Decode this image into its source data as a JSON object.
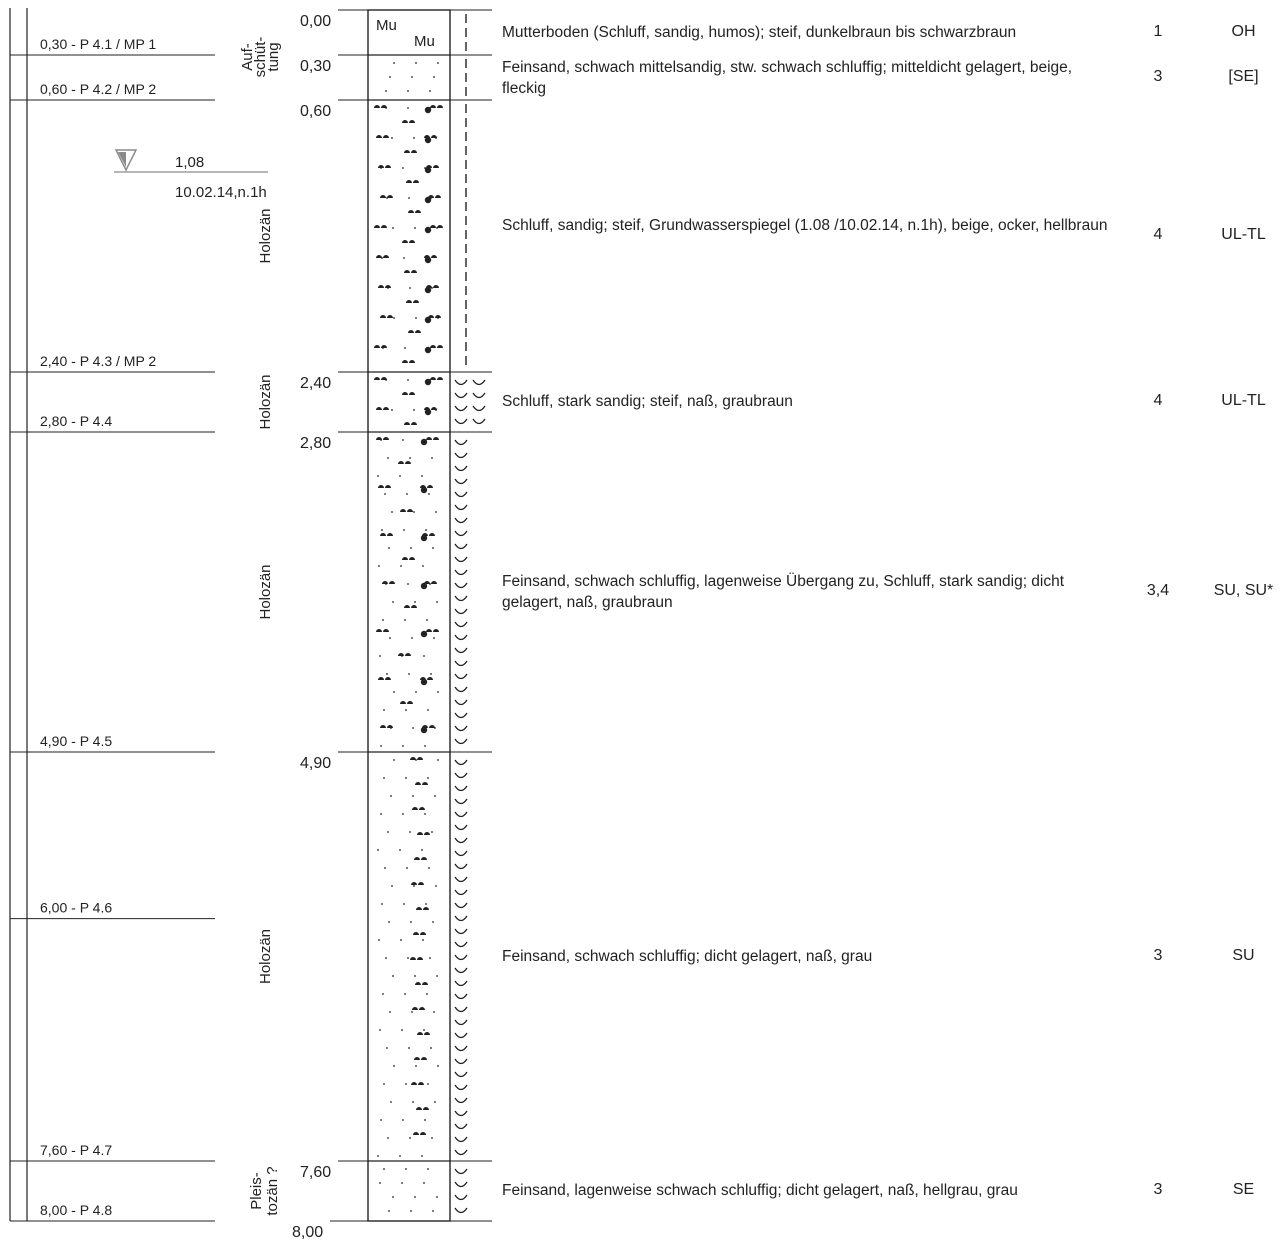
{
  "samples": [
    {
      "label": "0,30 - P 4.1 / MP 1",
      "depth": 0.3
    },
    {
      "label": "0,60 - P 4.2 / MP 2",
      "depth": 0.6
    },
    {
      "label": "2,40 - P 4.3 / MP 2",
      "depth": 2.4
    },
    {
      "label": "2,80 - P 4.4",
      "depth": 2.8
    },
    {
      "label": "4,90 - P 4.5",
      "depth": 4.9
    },
    {
      "label": "6,00 - P 4.6",
      "depth": 6.0
    },
    {
      "label": "7,60 - P 4.7",
      "depth": 7.6
    },
    {
      "label": "8,00 - P 4.8",
      "depth": 8.0
    }
  ],
  "groundwater": {
    "level": "1,08",
    "date": "10.02.14,n.1h",
    "depth": 1.08
  },
  "layers": [
    {
      "top": 0.0,
      "bottom": 0.3,
      "top_label": "0,00",
      "pattern": "topsoil",
      "symbol": "Mu",
      "consistency": "dashed",
      "geology": "",
      "description": "Mutterboden (Schluff, sandig, humos); steif, dunkelbraun bis schwarzbraun",
      "class": "1",
      "soil_group": "OH"
    },
    {
      "top": 0.3,
      "bottom": 0.6,
      "top_label": "0,30",
      "pattern": "sand",
      "consistency": "dashed",
      "geology": "",
      "description": "Feinsand, schwach mittelsandig, stw. schwach schluffig; mitteldicht gelagert, beige, fleckig",
      "class": "3",
      "soil_group": "[SE]"
    },
    {
      "top": 0.6,
      "bottom": 2.4,
      "top_label": "0,60",
      "pattern": "silt-sand",
      "consistency": "dashed",
      "geology": "Holozän",
      "description": "Schluff, sandig; steif, Grundwasserspiegel (1.08 /10.02.14, n.1h), beige, ocker, hellbraun",
      "class": "4",
      "soil_group": "UL-TL"
    },
    {
      "top": 2.4,
      "bottom": 2.8,
      "top_label": "2,40",
      "pattern": "silt-sand",
      "consistency": "wet",
      "geology": "Holozän",
      "description": "Schluff, stark sandig; steif, naß, graubraun",
      "class": "4",
      "soil_group": "UL-TL"
    },
    {
      "top": 2.8,
      "bottom": 4.9,
      "top_label": "2,80",
      "pattern": "sand-silt",
      "consistency": "wet",
      "geology": "Holozän",
      "description": "Feinsand, schwach schluffig, lagenweise Übergang zu, Schluff, stark sandig; dicht gelagert, naß, graubraun",
      "class": "3,4",
      "soil_group": "SU, SU*"
    },
    {
      "top": 4.9,
      "bottom": 7.6,
      "top_label": "4,90",
      "pattern": "sand-weak-silt",
      "consistency": "wet",
      "geology": "Holozän",
      "description": "Feinsand, schwach schluffig; dicht gelagert, naß, grau",
      "class": "3",
      "soil_group": "SU"
    },
    {
      "top": 7.6,
      "bottom": 8.0,
      "top_label": "7,60",
      "pattern": "sand",
      "consistency": "wet",
      "geology": "Pleis-\ntozän ?",
      "description": "Feinsand, lagenweise schwach schluffig; dicht gelagert, naß, hellgrau, grau",
      "class": "3",
      "soil_group": "SE"
    }
  ],
  "final_depth_label": "8,00",
  "fill_label": "Auf-\nschüt-\ntung",
  "colors": {
    "ink": "#222222",
    "water": "#8a8a8a"
  }
}
